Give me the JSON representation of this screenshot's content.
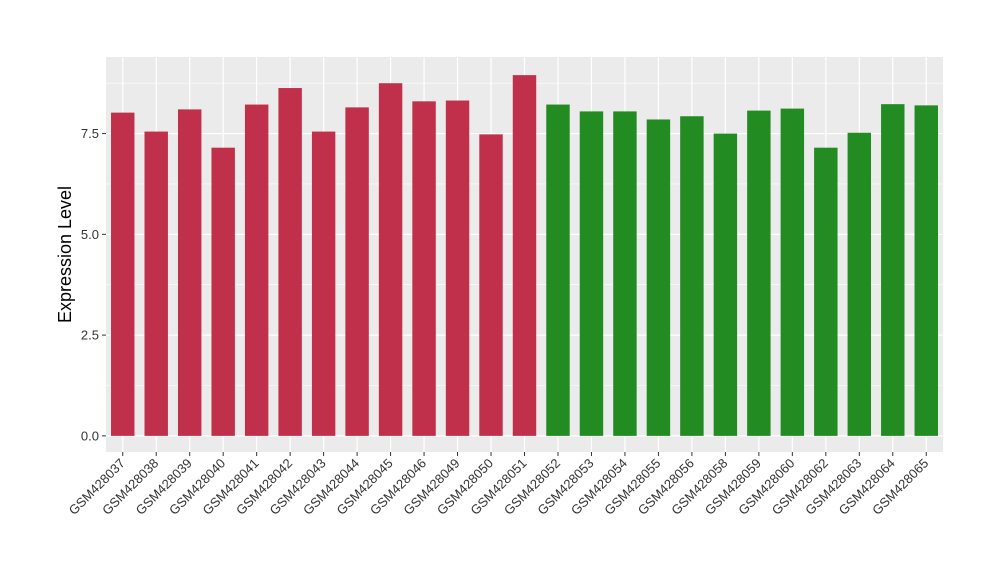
{
  "chart_data": {
    "type": "bar",
    "title": "",
    "xlabel": "",
    "ylabel": "Expression Level",
    "ylim": [
      -0.4,
      9.4
    ],
    "yticks": [
      0.0,
      2.5,
      5.0,
      7.5
    ],
    "ytick_labels": [
      "0.0",
      "2.5",
      "5.0",
      "7.5"
    ],
    "grid": true,
    "legend": "none",
    "categories": [
      "GSM428037",
      "GSM428038",
      "GSM428039",
      "GSM428040",
      "GSM428041",
      "GSM428042",
      "GSM428043",
      "GSM428044",
      "GSM428045",
      "GSM428046",
      "GSM428049",
      "GSM428050",
      "GSM428051",
      "GSM428052",
      "GSM428053",
      "GSM428054",
      "GSM428055",
      "GSM428056",
      "GSM428058",
      "GSM428059",
      "GSM428060",
      "GSM428062",
      "GSM428063",
      "GSM428064",
      "GSM428065"
    ],
    "values": [
      8.02,
      7.55,
      8.1,
      7.15,
      8.22,
      8.63,
      7.55,
      8.15,
      8.75,
      8.3,
      8.32,
      7.48,
      8.95,
      8.22,
      8.05,
      8.05,
      7.85,
      7.93,
      7.5,
      8.07,
      8.12,
      7.15,
      7.52,
      8.23,
      8.2
    ],
    "bar_colors": [
      "#c1304a",
      "#c1304a",
      "#c1304a",
      "#c1304a",
      "#c1304a",
      "#c1304a",
      "#c1304a",
      "#c1304a",
      "#c1304a",
      "#c1304a",
      "#c1304a",
      "#c1304a",
      "#c1304a",
      "#228b22",
      "#228b22",
      "#228b22",
      "#228b22",
      "#228b22",
      "#228b22",
      "#228b22",
      "#228b22",
      "#228b22",
      "#228b22",
      "#228b22",
      "#228b22"
    ],
    "panel_color": "#ebebeb",
    "gridline_color": "#ffffff"
  }
}
